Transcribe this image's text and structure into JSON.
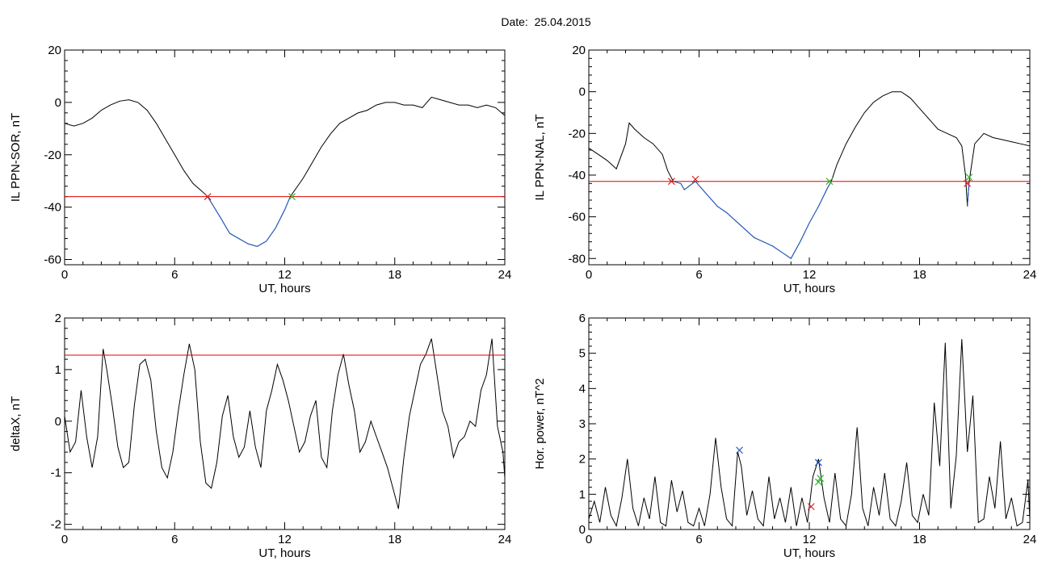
{
  "page": {
    "title": "Date:  25.04.2015"
  },
  "colors": {
    "trace": "#000000",
    "highlight": "#1f5fd0",
    "threshold": "#e00000",
    "marker_red": "#d02020",
    "marker_green": "#30b030",
    "marker_blue": "#2050c0"
  },
  "chart_data": [
    {
      "type": "line",
      "xlabel": "UT, hours",
      "ylabel": "IL PPN-SOR, nT",
      "xlim": [
        0,
        24
      ],
      "ylim": [
        -62,
        20
      ],
      "xticks": [
        0,
        6,
        12,
        18,
        24
      ],
      "yticks": [
        -60,
        -40,
        -20,
        0,
        20
      ],
      "threshold": -36,
      "series": [
        {
          "x": [
            0,
            0.5,
            1,
            1.5,
            2,
            2.5,
            3,
            3.5,
            4,
            4.5,
            5,
            5.5,
            6,
            6.5,
            7,
            7.5,
            7.8,
            8.5,
            9,
            9.5,
            10,
            10.5,
            11,
            11.5,
            12,
            12.3,
            13,
            13.5,
            14,
            14.5,
            15,
            15.5,
            16,
            16.5,
            17,
            17.5,
            18,
            18.5,
            19,
            19.5,
            20,
            20.5,
            21,
            21.5,
            22,
            22.5,
            23,
            23.5,
            24
          ],
          "y": [
            -8,
            -9,
            -8,
            -6,
            -3,
            -1,
            0.5,
            1,
            0,
            -3,
            -8,
            -14,
            -20,
            -26,
            -31,
            -34,
            -36,
            -44,
            -50,
            -52,
            -54,
            -55,
            -53,
            -48,
            -41,
            -36,
            -29,
            -23,
            -17,
            -12,
            -8,
            -6,
            -4,
            -3,
            -1,
            0,
            0,
            -1,
            -1,
            -2,
            2,
            1,
            0,
            -1,
            -1,
            -2,
            -1,
            -2,
            -5
          ]
        }
      ],
      "markers": [
        {
          "x": 7.8,
          "y": -36,
          "color": "red"
        },
        {
          "x": 12.4,
          "y": -36,
          "color": "green"
        }
      ]
    },
    {
      "type": "line",
      "xlabel": "UT, hours",
      "ylabel": "IL PPN-NAL, nT",
      "xlim": [
        0,
        24
      ],
      "ylim": [
        -83,
        20
      ],
      "xticks": [
        0,
        6,
        12,
        18,
        24
      ],
      "yticks": [
        -80,
        -60,
        -40,
        -20,
        0,
        20
      ],
      "threshold": -43,
      "series": [
        {
          "x": [
            0,
            0.5,
            1,
            1.5,
            2,
            2.2,
            2.5,
            3,
            3.5,
            4,
            4.3,
            4.6,
            5,
            5.2,
            5.5,
            5.8,
            6,
            6.5,
            7,
            7.5,
            8,
            8.5,
            9,
            9.5,
            10,
            10.5,
            11,
            11.5,
            12,
            12.5,
            13,
            13.2,
            13.5,
            14,
            14.5,
            15,
            15.5,
            16,
            16.5,
            17,
            17.5,
            18,
            18.5,
            19,
            19.5,
            20,
            20.3,
            20.5,
            20.6,
            20.7,
            21,
            21.5,
            22,
            22.5,
            23,
            23.5,
            24
          ],
          "y": [
            -27,
            -30,
            -33,
            -37,
            -25,
            -15,
            -18,
            -22,
            -25,
            -30,
            -38,
            -43,
            -44,
            -47,
            -45,
            -43,
            -45,
            -50,
            -55,
            -58,
            -62,
            -66,
            -70,
            -72,
            -74,
            -77,
            -80,
            -72,
            -63,
            -55,
            -46,
            -43,
            -35,
            -25,
            -17,
            -10,
            -5,
            -2,
            0,
            0,
            -3,
            -8,
            -13,
            -18,
            -20,
            -22,
            -26,
            -40,
            -55,
            -43,
            -25,
            -20,
            -22,
            -23,
            -24,
            -25,
            -26
          ]
        }
      ],
      "markers": [
        {
          "x": 4.5,
          "y": -43,
          "color": "red"
        },
        {
          "x": 5.8,
          "y": -42,
          "color": "red"
        },
        {
          "x": 13.1,
          "y": -43,
          "color": "green"
        },
        {
          "x": 20.6,
          "y": -44,
          "color": "red"
        },
        {
          "x": 20.7,
          "y": -41,
          "color": "green"
        }
      ]
    },
    {
      "type": "line",
      "xlabel": "UT, hours",
      "ylabel": "deltaX, nT",
      "xlim": [
        0,
        24
      ],
      "ylim": [
        -2.1,
        2
      ],
      "xticks": [
        0,
        6,
        12,
        18,
        24
      ],
      "yticks": [
        -2,
        -1,
        0,
        1,
        2
      ],
      "threshold": 1.28,
      "series": [
        {
          "x": [
            0,
            0.3,
            0.6,
            0.9,
            1.2,
            1.5,
            1.8,
            2.1,
            2.3,
            2.6,
            2.9,
            3.2,
            3.5,
            3.8,
            4.1,
            4.4,
            4.7,
            5,
            5.3,
            5.6,
            5.9,
            6.2,
            6.5,
            6.8,
            7.1,
            7.4,
            7.7,
            8,
            8.3,
            8.6,
            8.9,
            9.2,
            9.5,
            9.8,
            10.1,
            10.4,
            10.7,
            11,
            11.3,
            11.6,
            11.9,
            12.2,
            12.5,
            12.8,
            13.1,
            13.4,
            13.7,
            14,
            14.3,
            14.6,
            14.9,
            15.2,
            15.5,
            15.8,
            16.1,
            16.4,
            16.7,
            17,
            17.3,
            17.6,
            17.9,
            18.2,
            18.5,
            18.8,
            19.1,
            19.4,
            19.7,
            20,
            20.3,
            20.6,
            20.9,
            21.2,
            21.5,
            21.8,
            22.1,
            22.4,
            22.7,
            23,
            23.3,
            23.6,
            23.9,
            24
          ],
          "y": [
            0.1,
            -0.6,
            -0.4,
            0.6,
            -0.3,
            -0.9,
            -0.3,
            1.4,
            1.0,
            0.3,
            -0.5,
            -0.9,
            -0.8,
            0.3,
            1.1,
            1.2,
            0.8,
            -0.2,
            -0.9,
            -1.1,
            -0.6,
            0.2,
            0.9,
            1.5,
            1.0,
            -0.4,
            -1.2,
            -1.3,
            -0.8,
            0.1,
            0.5,
            -0.3,
            -0.7,
            -0.5,
            0.2,
            -0.5,
            -0.9,
            0.2,
            0.6,
            1.1,
            0.8,
            0.4,
            -0.1,
            -0.6,
            -0.4,
            0.1,
            0.4,
            -0.7,
            -0.9,
            0.2,
            0.9,
            1.3,
            0.7,
            0.2,
            -0.6,
            -0.4,
            0.0,
            -0.3,
            -0.6,
            -0.9,
            -1.3,
            -1.7,
            -0.7,
            0.1,
            0.6,
            1.1,
            1.3,
            1.6,
            0.9,
            0.2,
            -0.1,
            -0.7,
            -0.4,
            -0.3,
            0.0,
            -0.1,
            0.6,
            0.9,
            1.6,
            -0.1,
            -0.6,
            -1.1
          ]
        }
      ],
      "markers": []
    },
    {
      "type": "line",
      "xlabel": "UT, hours",
      "ylabel": "Hor. power, nT^2",
      "xlim": [
        0,
        24
      ],
      "ylim": [
        0,
        6
      ],
      "xticks": [
        0,
        6,
        12,
        18,
        24
      ],
      "yticks": [
        0,
        1,
        2,
        3,
        4,
        5,
        6
      ],
      "threshold": null,
      "series": [
        {
          "x": [
            0,
            0.3,
            0.6,
            0.9,
            1.2,
            1.5,
            1.8,
            2.1,
            2.4,
            2.7,
            3,
            3.3,
            3.6,
            3.9,
            4.2,
            4.5,
            4.8,
            5.1,
            5.4,
            5.7,
            6,
            6.3,
            6.6,
            6.9,
            7.2,
            7.5,
            7.8,
            8.1,
            8.3,
            8.6,
            8.9,
            9.2,
            9.5,
            9.8,
            10.1,
            10.4,
            10.7,
            11,
            11.3,
            11.6,
            11.9,
            12.2,
            12.5,
            12.8,
            13.1,
            13.4,
            13.7,
            14,
            14.3,
            14.6,
            14.9,
            15.2,
            15.5,
            15.8,
            16.1,
            16.4,
            16.7,
            17,
            17.3,
            17.6,
            17.9,
            18.2,
            18.5,
            18.8,
            19.1,
            19.4,
            19.7,
            20,
            20.3,
            20.6,
            20.9,
            21.2,
            21.5,
            21.8,
            22.1,
            22.4,
            22.7,
            23,
            23.3,
            23.6,
            23.9,
            24
          ],
          "y": [
            0.3,
            0.8,
            0.2,
            1.2,
            0.4,
            0.1,
            0.9,
            2.0,
            0.6,
            0.1,
            0.9,
            0.3,
            1.5,
            0.2,
            0.1,
            1.4,
            0.5,
            1.1,
            0.2,
            0.1,
            0.6,
            0.1,
            1.0,
            2.6,
            1.2,
            0.3,
            0.1,
            2.2,
            1.8,
            0.4,
            1.1,
            0.3,
            0.1,
            1.5,
            0.3,
            0.9,
            0.2,
            1.2,
            0.1,
            0.9,
            0.2,
            1.5,
            2.0,
            0.9,
            0.2,
            1.6,
            0.3,
            0.1,
            1.0,
            2.9,
            0.6,
            0.1,
            1.2,
            0.4,
            1.6,
            0.3,
            0.1,
            0.8,
            1.9,
            0.4,
            0.2,
            1.0,
            0.4,
            3.6,
            1.8,
            5.3,
            0.6,
            2.1,
            5.4,
            2.2,
            3.8,
            0.2,
            0.3,
            1.5,
            0.6,
            2.5,
            0.3,
            0.9,
            0.1,
            0.2,
            1.4,
            0.3
          ]
        }
      ],
      "markers": [
        {
          "x": 8.2,
          "y": 2.25,
          "color": "blue"
        },
        {
          "x": 12.5,
          "y": 1.9,
          "color": "blue"
        },
        {
          "x": 12.1,
          "y": 0.65,
          "color": "red"
        },
        {
          "x": 12.5,
          "y": 1.35,
          "color": "green"
        },
        {
          "x": 12.6,
          "y": 1.45,
          "color": "green"
        }
      ]
    }
  ]
}
